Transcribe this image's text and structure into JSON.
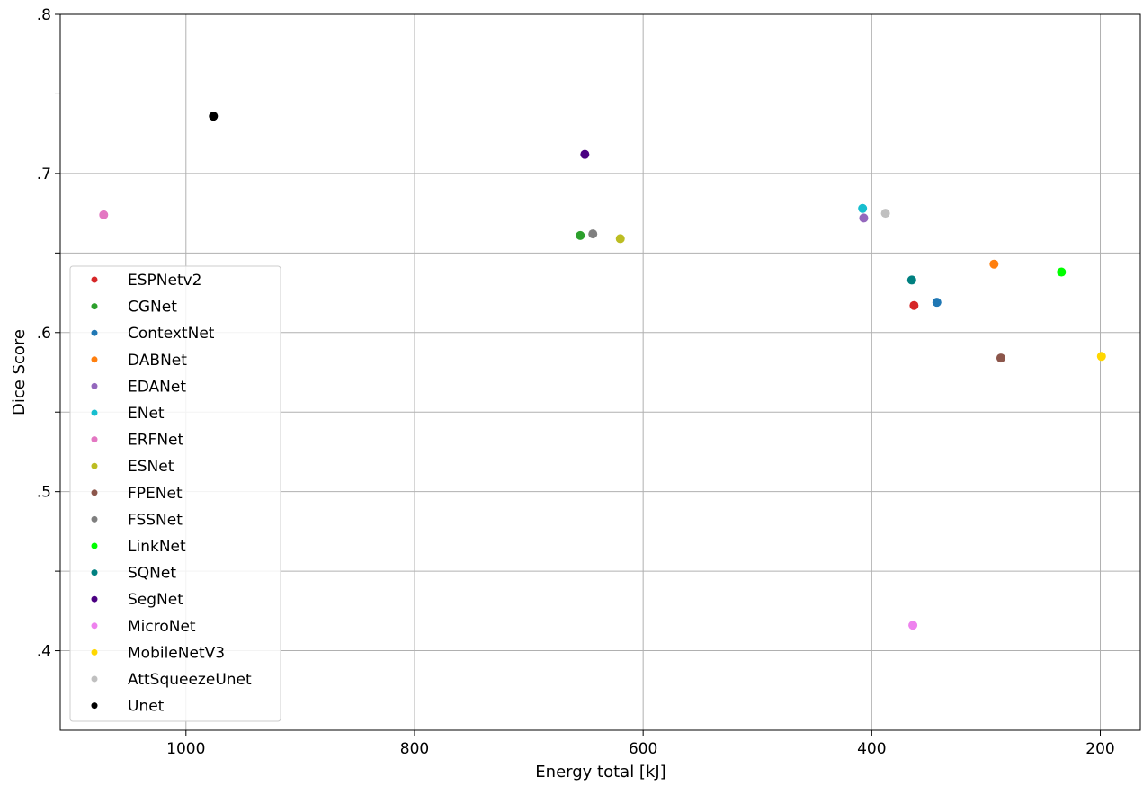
{
  "chart_data": {
    "type": "scatter",
    "title": "",
    "xlabel": "Energy total [kJ]",
    "ylabel": "Dice Score",
    "xlim": [
      1110,
      165
    ],
    "ylim": [
      0.35,
      0.8
    ],
    "x_inverted": true,
    "grid": true,
    "legend_position": "lower-left",
    "x_ticks": [
      1000,
      800,
      600,
      400,
      200
    ],
    "x_tick_labels": [
      "1000",
      "800",
      "600",
      "400",
      "200"
    ],
    "y_ticks": [
      0.4,
      0.45,
      0.5,
      0.55,
      0.6,
      0.65,
      0.7,
      0.75,
      0.8
    ],
    "y_tick_labels": [
      ".4",
      "",
      ".5",
      "",
      ".6",
      "",
      ".7",
      "",
      ".8"
    ],
    "series": [
      {
        "name": "ESPNetv2",
        "color": "#d62728",
        "points": [
          {
            "x": 363,
            "y": 0.617
          }
        ]
      },
      {
        "name": "CGNet",
        "color": "#2ca02c",
        "points": [
          {
            "x": 655,
            "y": 0.661
          }
        ]
      },
      {
        "name": "ContextNet",
        "color": "#1f77b4",
        "points": [
          {
            "x": 343,
            "y": 0.619
          }
        ]
      },
      {
        "name": "DABNet",
        "color": "#ff7f0e",
        "points": [
          {
            "x": 293,
            "y": 0.643
          }
        ]
      },
      {
        "name": "EDANet",
        "color": "#9467bd",
        "points": [
          {
            "x": 407,
            "y": 0.672
          }
        ]
      },
      {
        "name": "ENet",
        "color": "#17becf",
        "points": [
          {
            "x": 408,
            "y": 0.678
          }
        ]
      },
      {
        "name": "ERFNet",
        "color": "#e377c2",
        "points": [
          {
            "x": 1072,
            "y": 0.674
          }
        ]
      },
      {
        "name": "ESNet",
        "color": "#bcbd22",
        "points": [
          {
            "x": 620,
            "y": 0.659
          }
        ]
      },
      {
        "name": "FPENet",
        "color": "#8c564b",
        "points": [
          {
            "x": 287,
            "y": 0.584
          }
        ]
      },
      {
        "name": "FSSNet",
        "color": "#7f7f7f",
        "points": [
          {
            "x": 644,
            "y": 0.662
          }
        ]
      },
      {
        "name": "LinkNet",
        "color": "#00ff00",
        "points": [
          {
            "x": 234,
            "y": 0.638
          }
        ]
      },
      {
        "name": "SQNet",
        "color": "#008080",
        "points": [
          {
            "x": 365,
            "y": 0.633
          }
        ]
      },
      {
        "name": "SegNet",
        "color": "#4b0082",
        "points": [
          {
            "x": 651,
            "y": 0.712
          }
        ]
      },
      {
        "name": "MicroNet",
        "color": "#ee82ee",
        "points": [
          {
            "x": 364,
            "y": 0.416
          }
        ]
      },
      {
        "name": "MobileNetV3",
        "color": "#ffd700",
        "points": [
          {
            "x": 199,
            "y": 0.585
          }
        ]
      },
      {
        "name": "AttSqueezeUnet",
        "color": "#c0c0c0",
        "points": [
          {
            "x": 388,
            "y": 0.675
          }
        ]
      },
      {
        "name": "Unet",
        "color": "#000000",
        "points": [
          {
            "x": 976,
            "y": 0.736
          }
        ]
      }
    ]
  }
}
